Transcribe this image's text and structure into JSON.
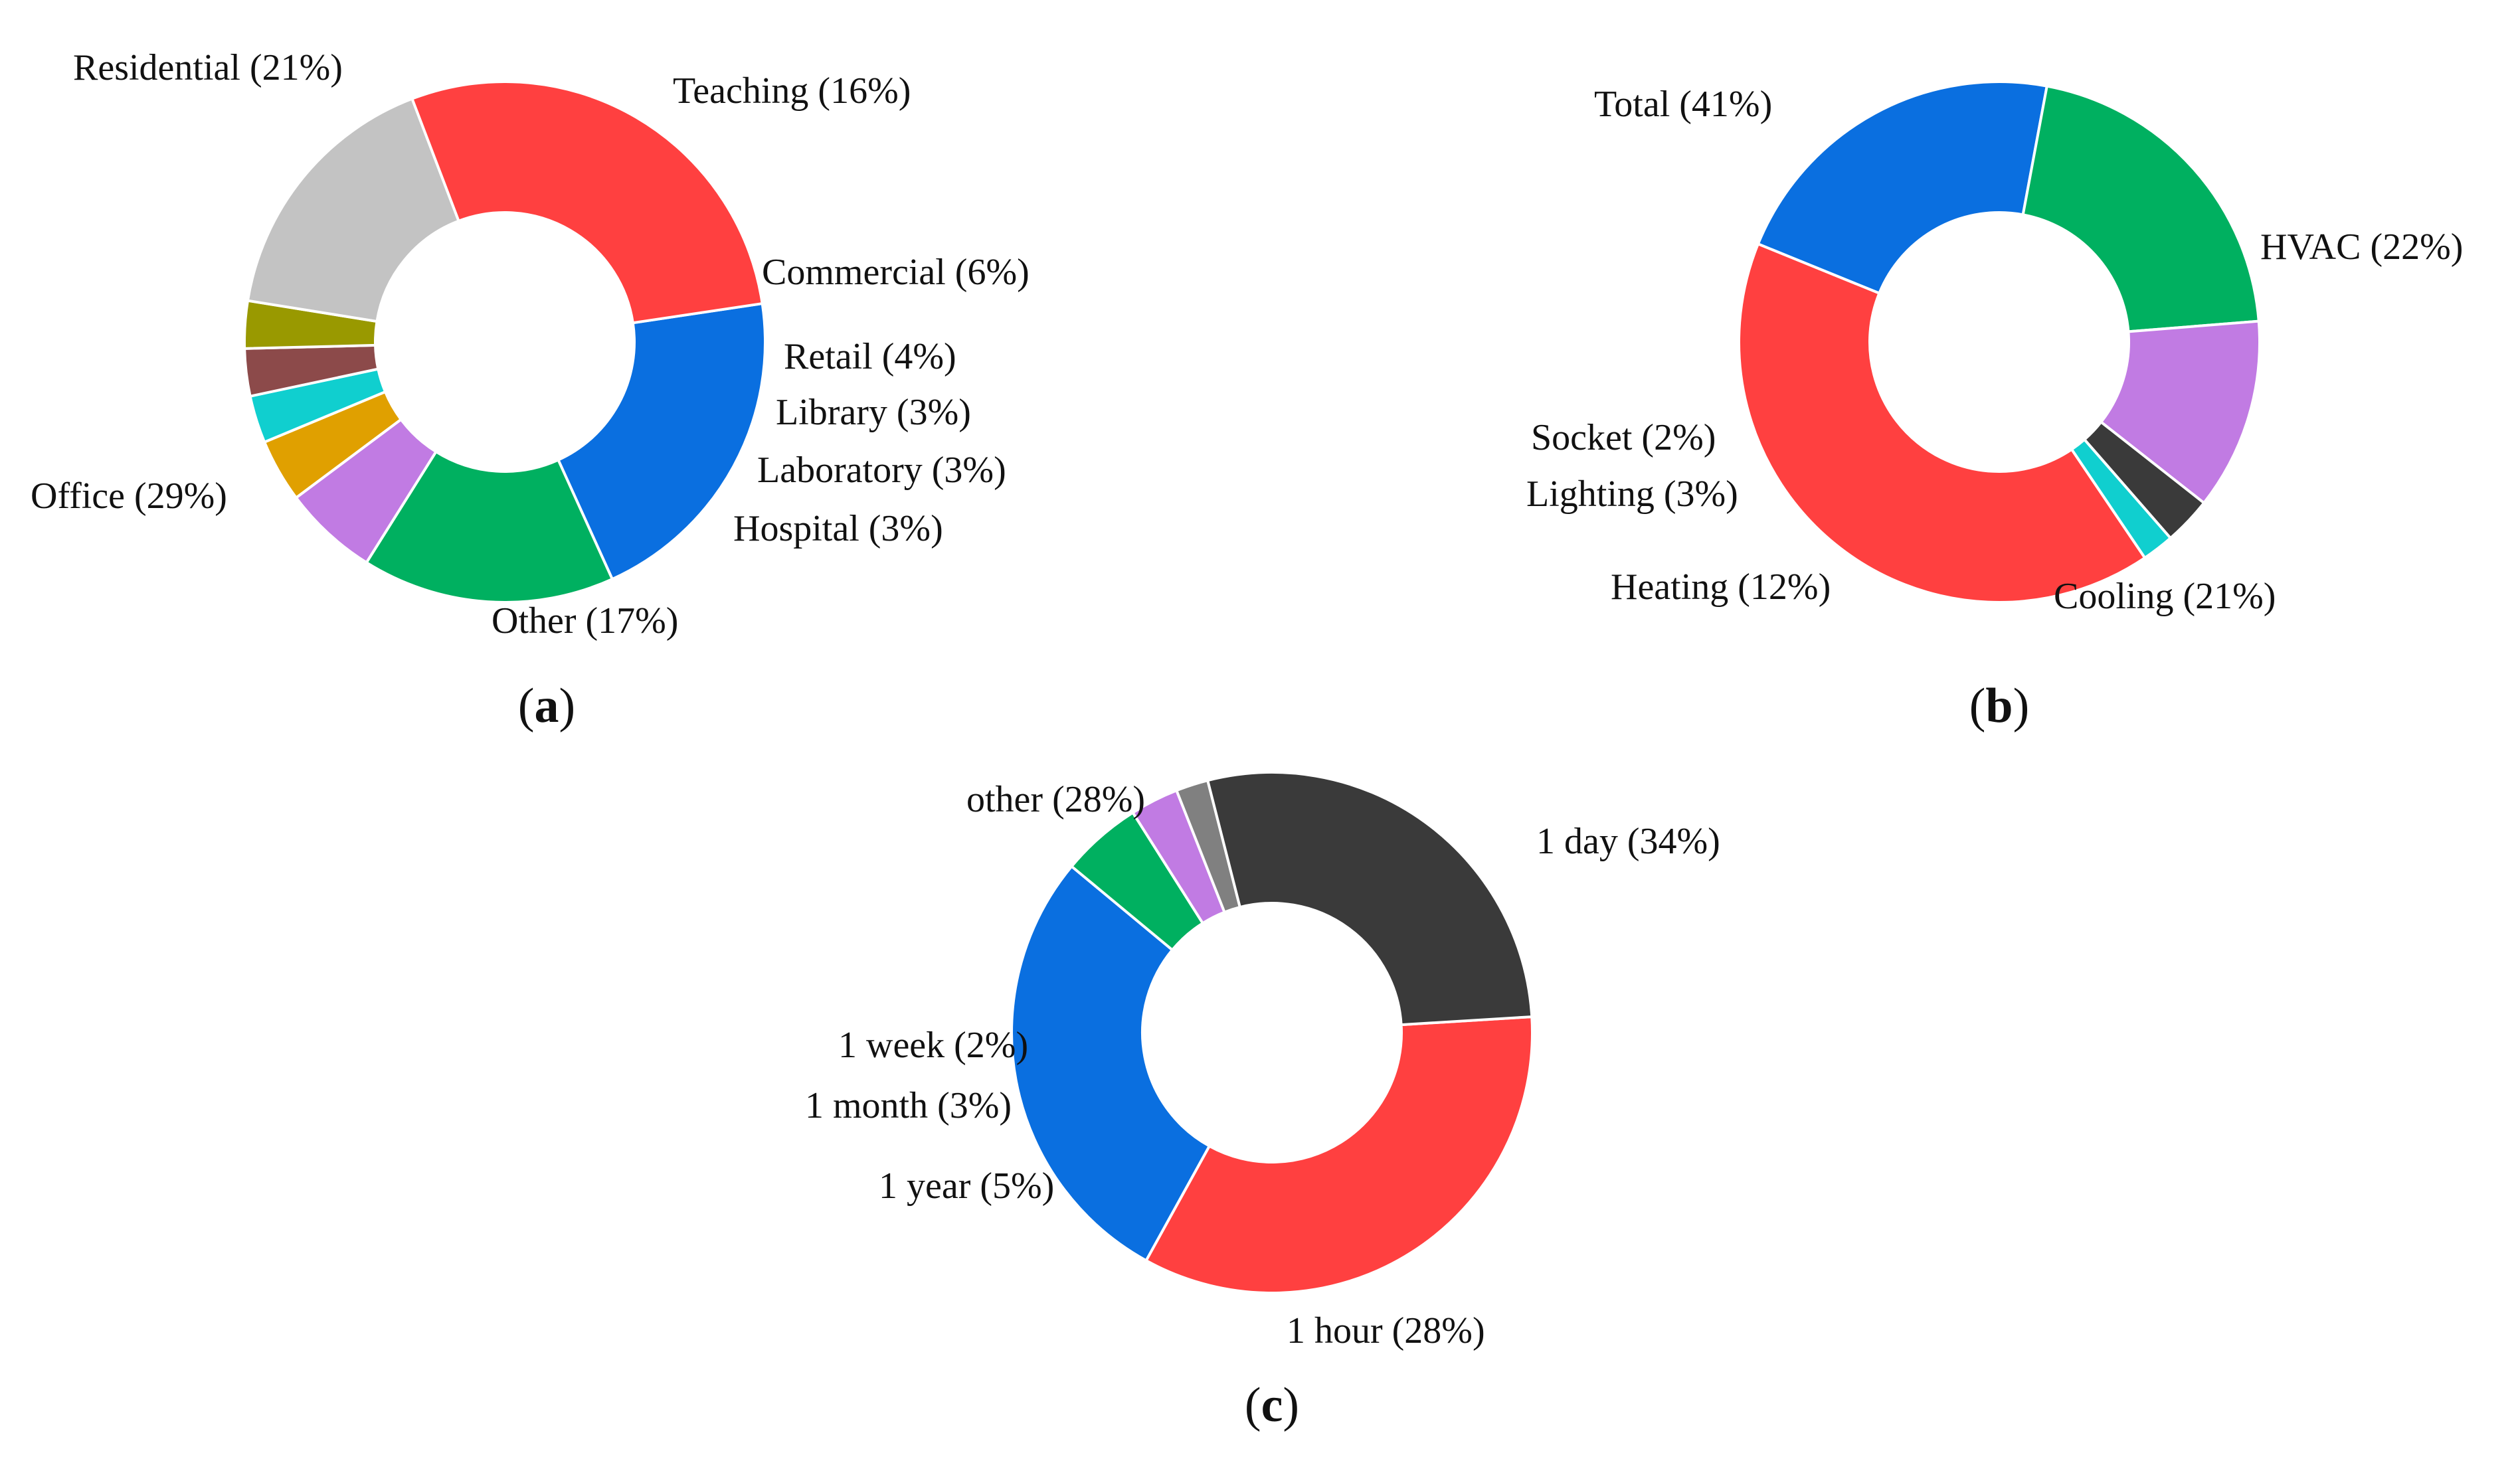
{
  "chart_data": [
    {
      "type": "pie",
      "style": "donut",
      "caption": "a",
      "slices": [
        {
          "label": "Residential (21%)",
          "value": 21,
          "color": "#0A6FE0"
        },
        {
          "label": "Teaching (16%)",
          "value": 16,
          "color": "#00B060"
        },
        {
          "label": "Commercial (6%)",
          "value": 6,
          "color": "#C17BE3"
        },
        {
          "label": "Retail (4%)",
          "value": 4,
          "color": "#E0A000"
        },
        {
          "label": "Library (3%)",
          "value": 3,
          "color": "#10CFCF"
        },
        {
          "label": "Laboratory (3%)",
          "value": 3,
          "color": "#8C4A4A"
        },
        {
          "label": "Hospital (3%)",
          "value": 3,
          "color": "#999900"
        },
        {
          "label": "Other (17%)",
          "value": 17,
          "color": "#C3C3C3"
        },
        {
          "label": "Office (29%)",
          "value": 29,
          "color": "#FF4040"
        }
      ]
    },
    {
      "type": "pie",
      "style": "donut",
      "caption": "b",
      "slices": [
        {
          "label": "Total (41%)",
          "value": 41,
          "color": "#FF4040"
        },
        {
          "label": "HVAC (22%)",
          "value": 22,
          "color": "#0A6FE0"
        },
        {
          "label": "Cooling (21%)",
          "value": 21,
          "color": "#00B060"
        },
        {
          "label": "Heating (12%)",
          "value": 12,
          "color": "#C17BE3"
        },
        {
          "label": "Lighting (3%)",
          "value": 3,
          "color": "#3A3A3A"
        },
        {
          "label": "Socket (2%)",
          "value": 2,
          "color": "#10CFCF"
        }
      ]
    },
    {
      "type": "pie",
      "style": "donut",
      "caption": "c",
      "slices": [
        {
          "label": "1 day (34%)",
          "value": 34,
          "color": "#FF4040"
        },
        {
          "label": "1 hour (28%)",
          "value": 28,
          "color": "#0A6FE0"
        },
        {
          "label": "1 year (5%)",
          "value": 5,
          "color": "#00B060"
        },
        {
          "label": "1 month (3%)",
          "value": 3,
          "color": "#C17BE3"
        },
        {
          "label": "1 week (2%)",
          "value": 2,
          "color": "#808080"
        },
        {
          "label": "other (28%)",
          "value": 28,
          "color": "#3A3A3A"
        }
      ]
    }
  ]
}
